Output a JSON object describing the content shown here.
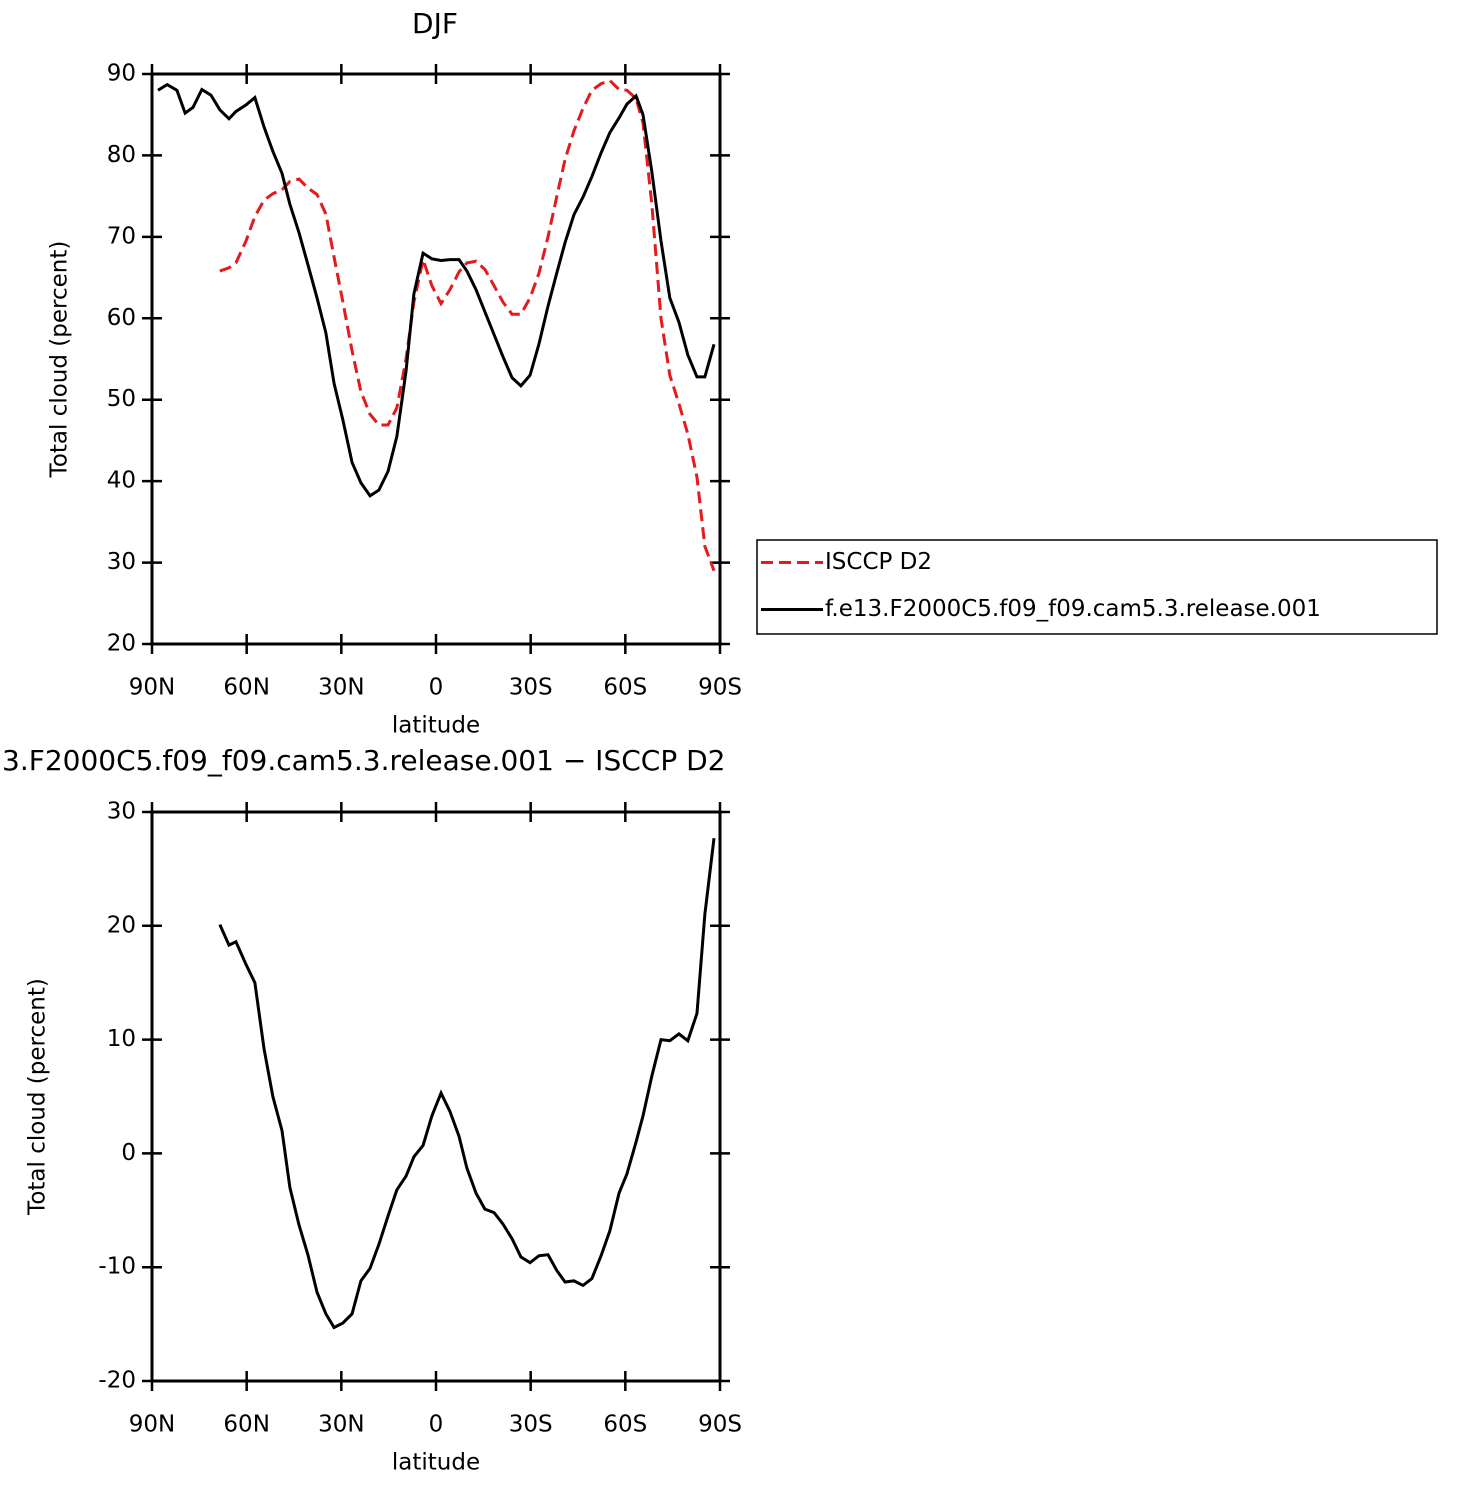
{
  "chart_data": [
    {
      "type": "line",
      "title": "DJF",
      "xlabel": "latitude",
      "ylabel": "Total cloud (percent)",
      "x": [
        88.1,
        85.2,
        82.1,
        79.5,
        77.0,
        74.2,
        71.3,
        68.5,
        65.6,
        63.4,
        60.2,
        57.4,
        54.5,
        51.7,
        48.8,
        46.3,
        43.4,
        40.6,
        37.7,
        34.9,
        32.3,
        29.5,
        26.6,
        23.8,
        20.9,
        18.1,
        15.2,
        12.4,
        9.5,
        7.0,
        4.1,
        1.3,
        -1.6,
        -4.4,
        -7.3,
        -9.8,
        -12.7,
        -15.5,
        -18.4,
        -21.2,
        -24.1,
        -26.9,
        -29.8,
        -32.6,
        -35.5,
        -38.3,
        -40.9,
        -43.7,
        -46.6,
        -49.4,
        -52.3,
        -55.1,
        -58.0,
        -60.5,
        -63.4,
        -65.6,
        -68.4,
        -71.3,
        -74.1,
        -77.0,
        -79.8,
        -82.7,
        -85.2,
        -88.1
      ],
      "series": [
        {
          "name": "ISCCP D2",
          "color": "#e41a1c",
          "style": "dashed",
          "values": [
            null,
            null,
            null,
            null,
            null,
            null,
            null,
            65.8,
            66.2,
            66.8,
            69.5,
            72.5,
            74.5,
            75.3,
            75.8,
            76.8,
            77.1,
            76.0,
            75.2,
            72.8,
            67.5,
            62.0,
            56.0,
            51.0,
            48.2,
            46.9,
            46.9,
            49.0,
            55.0,
            62.0,
            67.2,
            64.0,
            61.8,
            63.5,
            65.7,
            66.8,
            67.0,
            66.0,
            64.0,
            62.0,
            60.5,
            60.5,
            62.5,
            65.5,
            70.0,
            75.0,
            79.5,
            83.0,
            85.8,
            88.0,
            88.8,
            89.2,
            88.1,
            88.0,
            87.0,
            84.0,
            74.0,
            60.0,
            53.0,
            49.5,
            45.8,
            40.5,
            32.0,
            29.0
          ]
        },
        {
          "name": "f.e13.F2000C5.f09_f09.cam5.3.release.001",
          "color": "#000000",
          "style": "solid",
          "values": [
            88.0,
            88.7,
            88.0,
            85.2,
            85.9,
            88.1,
            87.4,
            85.6,
            84.5,
            85.4,
            86.2,
            87.1,
            83.5,
            80.5,
            77.8,
            74.0,
            70.5,
            66.6,
            62.5,
            58.2,
            52.0,
            47.5,
            42.3,
            39.8,
            38.2,
            38.9,
            41.2,
            45.5,
            53.5,
            63.0,
            68.0,
            67.3,
            67.1,
            67.2,
            67.2,
            65.8,
            63.5,
            60.8,
            58.0,
            55.3,
            52.7,
            51.7,
            53.0,
            56.8,
            61.5,
            65.6,
            69.3,
            72.7,
            74.9,
            77.4,
            80.3,
            82.8,
            84.6,
            86.3,
            87.3,
            85.0,
            78.0,
            69.5,
            62.5,
            59.5,
            55.5,
            52.8,
            52.8,
            56.8
          ]
        }
      ],
      "xlim": [
        90,
        -90
      ],
      "xticks": [
        {
          "value": 90,
          "label": "90N"
        },
        {
          "value": 60,
          "label": "60N"
        },
        {
          "value": 30,
          "label": "30N"
        },
        0,
        {
          "value": -30,
          "label": "30S"
        },
        {
          "value": -60,
          "label": "60S"
        },
        {
          "value": -90,
          "label": "90S"
        }
      ],
      "ylim": [
        20,
        90
      ],
      "yticks": [
        20,
        30,
        40,
        50,
        60,
        70,
        80,
        90
      ],
      "legend": "right"
    },
    {
      "type": "line",
      "title": "3.F2000C5.f09_f09.cam5.3.release.001 − ISCCP D2",
      "xlabel": "latitude",
      "ylabel": "Total cloud (percent)",
      "x": [
        68.5,
        65.6,
        63.4,
        60.2,
        57.4,
        54.5,
        51.7,
        48.8,
        46.3,
        43.4,
        40.6,
        37.7,
        34.9,
        32.3,
        29.5,
        26.6,
        23.8,
        20.9,
        18.1,
        15.2,
        12.4,
        9.5,
        7.0,
        4.1,
        1.3,
        -1.6,
        -4.4,
        -7.3,
        -9.8,
        -12.7,
        -15.5,
        -18.4,
        -21.2,
        -24.1,
        -26.9,
        -29.8,
        -32.6,
        -35.5,
        -38.3,
        -40.9,
        -43.7,
        -46.6,
        -49.4,
        -52.3,
        -55.1,
        -58.0,
        -60.5,
        -63.4,
        -65.6,
        -68.4,
        -71.3,
        -74.1,
        -77.0,
        -79.8,
        -82.7,
        -85.2,
        -88.1
      ],
      "series": [
        {
          "color": "#000000",
          "style": "solid",
          "values": [
            20.1,
            18.3,
            18.6,
            16.6,
            15.0,
            9.2,
            5.0,
            2.0,
            -3.0,
            -6.3,
            -8.9,
            -12.2,
            -14.1,
            -15.3,
            -14.9,
            -14.1,
            -11.2,
            -10.1,
            -8.0,
            -5.5,
            -3.2,
            -2.0,
            -0.3,
            0.7,
            3.3,
            5.3,
            3.7,
            1.5,
            -1.3,
            -3.5,
            -4.9,
            -5.2,
            -6.2,
            -7.5,
            -9.1,
            -9.6,
            -9.0,
            -8.9,
            -10.3,
            -11.3,
            -11.2,
            -11.6,
            -11.0,
            -9.0,
            -6.8,
            -3.5,
            -1.8,
            1.0,
            3.3,
            6.8,
            10.0,
            9.9,
            10.5,
            9.9,
            12.3,
            21.0,
            27.7
          ]
        }
      ],
      "xlim": [
        90,
        -90
      ],
      "xticks": [
        {
          "value": 90,
          "label": "90N"
        },
        {
          "value": 60,
          "label": "60N"
        },
        {
          "value": 30,
          "label": "30N"
        },
        0,
        {
          "value": -30,
          "label": "30S"
        },
        {
          "value": -60,
          "label": "60S"
        },
        {
          "value": -90,
          "label": "90S"
        }
      ],
      "ylim": [
        -20,
        30
      ],
      "yticks": [
        -20,
        -10,
        0,
        10,
        20,
        30
      ]
    }
  ]
}
